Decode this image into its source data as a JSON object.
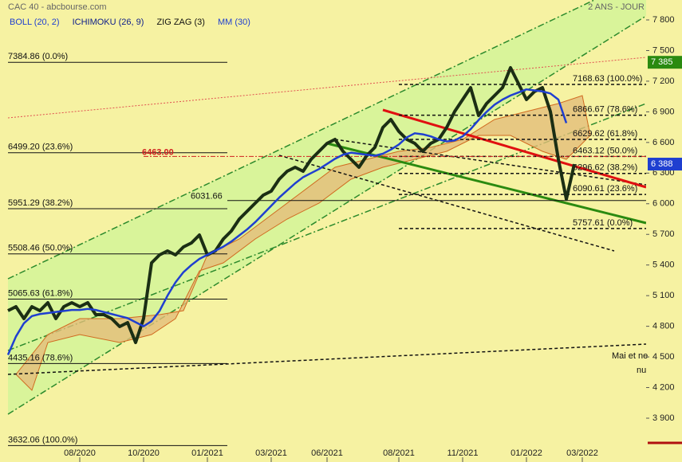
{
  "chart_data": {
    "type": "line",
    "title": "CAC 40 - abcbourse.com",
    "period": "2 ANS - JOUR",
    "indicators": [
      {
        "name": "BOLL (20, 2)",
        "color": "#1f3fd0"
      },
      {
        "name": "ICHIMOKU (26, 9)",
        "color": "#10208a"
      }
    ],
    "categories": [
      null,
      null,
      null,
      null,
      null,
      null,
      null,
      null,
      null,
      "08/2020",
      null,
      null,
      null,
      null,
      null,
      null,
      null,
      "10/2020",
      null,
      null,
      null,
      null,
      null,
      null,
      null,
      "01/2021",
      null,
      null,
      null,
      null,
      null,
      null,
      null,
      "03/2021",
      null,
      null,
      null,
      null,
      null,
      null,
      "06/2021",
      null,
      null,
      null,
      null,
      null,
      null,
      null,
      null,
      "08/2021",
      null,
      null,
      null,
      null,
      null,
      null,
      null,
      "11/2021",
      null,
      null,
      null,
      null,
      null,
      null,
      null,
      "01/2022",
      null,
      null,
      null,
      null,
      null,
      null,
      "03/2022"
    ],
    "series": [
      {
        "name": "ZIG ZAG (3)",
        "color": "#1b2e14",
        "values": [
          4953,
          4992,
          4875,
          4992,
          4953,
          5031,
          4875,
          4992,
          5031,
          4992,
          5031,
          4914,
          4914,
          4875,
          4797,
          4836,
          4641,
          4875,
          5421,
          5499,
          5538,
          5499,
          5577,
          5616,
          5694,
          5499,
          5538,
          5655,
          5733,
          5850,
          5928,
          6006,
          6084,
          6123,
          6240,
          6318,
          6357,
          6318,
          6435,
          6513,
          6591,
          6630,
          6513,
          6435,
          6357,
          6474,
          6552,
          6747,
          6825,
          6708,
          6630,
          6591,
          6513,
          6591,
          6630,
          6747,
          6903,
          7020,
          7137,
          6864,
          6981,
          7059,
          7137,
          7332,
          7176,
          7020,
          7098,
          7137,
          6903,
          6435,
          6045,
          6388,
          null
        ]
      },
      {
        "name": "MM (30)",
        "color": "#1f3fd0",
        "values": [
          4520,
          4700,
          4830,
          4900,
          4920,
          4930,
          4940,
          4950,
          4960,
          4960,
          4970,
          4960,
          4940,
          4920,
          4900,
          4880,
          4840,
          4800,
          4850,
          4950,
          5100,
          5230,
          5330,
          5400,
          5460,
          5500,
          5540,
          5580,
          5630,
          5690,
          5750,
          5820,
          5900,
          5980,
          6060,
          6130,
          6200,
          6260,
          6300,
          6340,
          6390,
          6440,
          6480,
          6500,
          6490,
          6480,
          6470,
          6490,
          6530,
          6580,
          6650,
          6690,
          6680,
          6660,
          6630,
          6610,
          6620,
          6660,
          6730,
          6820,
          6900,
          6970,
          7020,
          7060,
          7090,
          7120,
          7110,
          7100,
          7080,
          7020,
          6790,
          null,
          null
        ]
      }
    ],
    "ylim": [
      3471,
      7995
    ],
    "yticks": [
      {
        "value": 3900,
        "label": "3 900"
      },
      {
        "value": 4200,
        "label": "4 200"
      },
      {
        "value": 4500,
        "label": "4 500"
      },
      {
        "value": 4800,
        "label": "4 800"
      },
      {
        "value": 5100,
        "label": "5 100"
      },
      {
        "value": 5400,
        "label": "5 400"
      },
      {
        "value": 5700,
        "label": "5 700"
      },
      {
        "value": 6000,
        "label": "6 000"
      },
      {
        "value": 6300,
        "label": "6 300"
      },
      {
        "value": 6600,
        "label": "6 600"
      },
      {
        "value": 6900,
        "label": "6 900"
      },
      {
        "value": 7200,
        "label": "7 200"
      },
      {
        "value": 7500,
        "label": "7 500"
      },
      {
        "value": 7800,
        "label": "7 800"
      }
    ],
    "fib_left": [
      {
        "value": 7384.86,
        "label": "7384.86 (0.0%)"
      },
      {
        "value": 6499.2,
        "label": "6499.20 (23.6%)"
      },
      {
        "value": 5951.29,
        "label": "5951.29 (38.2%)"
      },
      {
        "value": 5508.46,
        "label": "5508.46 (50.0%)"
      },
      {
        "value": 5065.63,
        "label": "5065.63 (61.8%)"
      },
      {
        "value": 4435.16,
        "label": "4435.16 (78.6%)"
      },
      {
        "value": 3632.06,
        "label": "3632.06 (100.0%)"
      }
    ],
    "fib_right": [
      {
        "value": 7168.63,
        "label": "7168.63 (100.0%)"
      },
      {
        "value": 6866.67,
        "label": "6866.67 (78.6%)"
      },
      {
        "value": 6629.62,
        "label": "6629.62 (61.8%)"
      },
      {
        "value": 6463.12,
        "label": "6463.12 (50.0%)"
      },
      {
        "value": 6296.62,
        "label": "6296.62 (38.2%)"
      },
      {
        "value": 6090.61,
        "label": "6090.61 (23.6%)"
      },
      {
        "value": 5757.61,
        "label": "5757.61 (0.0%)"
      }
    ],
    "level_black": {
      "value": 6031.66,
      "label": "6031.66"
    },
    "level_red": {
      "value": 6463.0,
      "label": "6463.00"
    },
    "price_high": {
      "value": 7385,
      "label": "7 385"
    },
    "price_last": {
      "value": 6388,
      "label": "6 388"
    },
    "notes": [
      "Mai et ne",
      "nu"
    ]
  }
}
